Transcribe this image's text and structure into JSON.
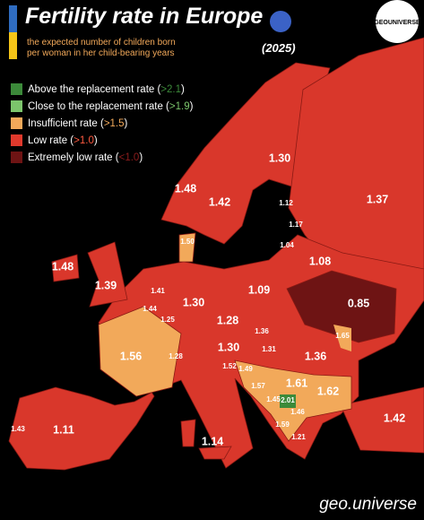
{
  "header": {
    "title": "Fertility rate in Europe",
    "subtitle": [
      "the expected number of children born",
      "per woman in her child-bearing years"
    ],
    "year": "(2025)",
    "logo": "GEOUNIVERSE"
  },
  "legend": [
    {
      "text": "Above the replacement rate (",
      "threshold": ">2.1",
      "close": ")",
      "color": "#3c8a3a",
      "threshold_color": "#3c8a3a"
    },
    {
      "text": "Close to the replacement rate (",
      "threshold": ">1.9",
      "close": ")",
      "color": "#7cc56c",
      "threshold_color": "#7cc56c"
    },
    {
      "text": "Insufficient rate (",
      "threshold": ">1.5",
      "close": ")",
      "color": "#f2a95a",
      "threshold_color": "#f2a95a"
    },
    {
      "text": "Low rate (",
      "threshold": ">1.0",
      "close": ")",
      "color": "#e0392c",
      "threshold_color": "#ff5a40"
    },
    {
      "text": "Extremely low rate (",
      "threshold": "<1.0",
      "close": ")",
      "color": "#6e1414",
      "threshold_color": "#8e1c1c"
    }
  ],
  "map": {
    "values": [
      1.3,
      1.48,
      1.42,
      1.12,
      1.17,
      1.04,
      1.37,
      1.08,
      1.5,
      1.48,
      1.39,
      1.41,
      1.44,
      1.25,
      1.3,
      1.09,
      0.85,
      1.28,
      1.36,
      1.56,
      1.28,
      1.3,
      1.31,
      1.36,
      1.65,
      1.52,
      1.49,
      1.57,
      1.61,
      1.62,
      1.45,
      2.01,
      1.59,
      1.46,
      1.21,
      1.42,
      1.11,
      1.43,
      1.14
    ],
    "value_labels": [
      "1.30",
      "1.48",
      "1.42",
      "1.12",
      "1.17",
      "1.04",
      "1.37",
      "1.08",
      "1.50",
      "1.48",
      "1.39",
      "1.41",
      "1.44",
      "1.25",
      "1.30",
      "1.09",
      "0.85",
      "1.28",
      "1.36",
      "1.56",
      "1.28",
      "1.30",
      "1.31",
      "1.36",
      "1.65",
      "1.52",
      "1.49",
      "1.57",
      "1.61",
      "1.62",
      "1.45",
      "2.01",
      "1.59",
      "1.46",
      "1.21",
      "1.42",
      "1.11",
      "1.43",
      "1.14"
    ]
  },
  "credit": "geo.universe"
}
